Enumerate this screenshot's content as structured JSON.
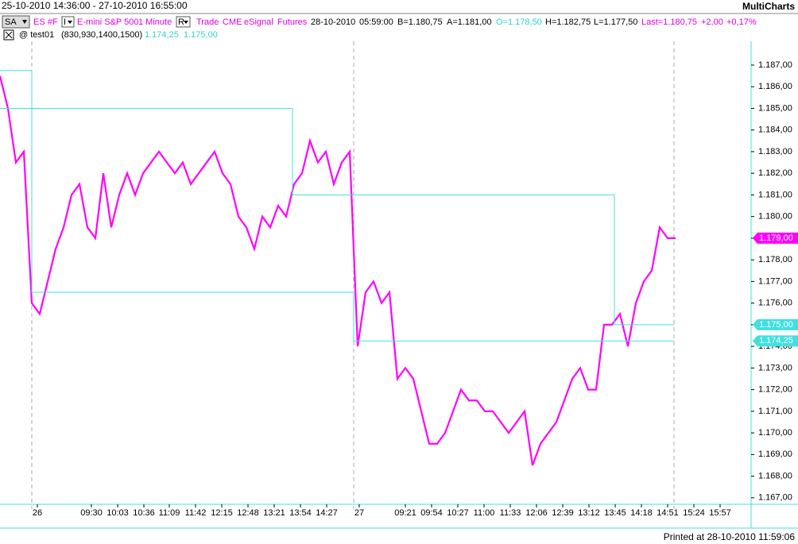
{
  "header": {
    "range": "25-10-2010 14:36:00 - 27-10-2010 16:55:00",
    "app": "MultiCharts",
    "buttons": [
      "SA",
      "I",
      "R"
    ],
    "symbol_bar": [
      "ES #F",
      "E-mini S&P 500",
      "1 Minute",
      "Trade",
      "CME",
      "eSignal",
      "Futures",
      "28-10-2010",
      "05:59:00",
      "B=1.180,75",
      "A=1.181,00",
      "O=1.178,50",
      "H=1.182,75",
      "L=1.177,50",
      "Last=1.180,75",
      "+2,00",
      "+0,17%"
    ],
    "study": {
      "name": "@ test01",
      "params": "(830,930,1400,1500)",
      "values": [
        "1.174,25",
        "1.175,00"
      ]
    }
  },
  "footer": "Printed at 28-10-2010 11:59:06",
  "chart_data": {
    "type": "line",
    "xlim": [
      0,
      94.5
    ],
    "ylim": [
      1166.7,
      1188.1
    ],
    "yticks": [
      {
        "value": 1167,
        "label": "1.167,00"
      },
      {
        "value": 1168,
        "label": "1.168,00"
      },
      {
        "value": 1169,
        "label": "1.169,00"
      },
      {
        "value": 1170,
        "label": "1.170,00"
      },
      {
        "value": 1171,
        "label": "1.171,00"
      },
      {
        "value": 1172,
        "label": "1.172,00"
      },
      {
        "value": 1173,
        "label": "1.173,00"
      },
      {
        "value": 1174,
        "label": "1.174,00"
      },
      {
        "value": 1175,
        "label": "1.175,00"
      },
      {
        "value": 1176,
        "label": "1.176,00"
      },
      {
        "value": 1177,
        "label": "1.177,00"
      },
      {
        "value": 1178,
        "label": "1.178,00"
      },
      {
        "value": 1179,
        "label": "1.179,00"
      },
      {
        "value": 1180,
        "label": "1.180,00"
      },
      {
        "value": 1181,
        "label": "1.181,00"
      },
      {
        "value": 1182,
        "label": "1.182,00"
      },
      {
        "value": 1183,
        "label": "1.183,00"
      },
      {
        "value": 1184,
        "label": "1.184,00"
      },
      {
        "value": 1185,
        "label": "1.185,00"
      },
      {
        "value": 1186,
        "label": "1.186,00"
      },
      {
        "value": 1187,
        "label": "1.187,00"
      }
    ],
    "xticks": [
      {
        "value": 4.7,
        "label": "26"
      },
      {
        "value": 11.5,
        "label": "09:30"
      },
      {
        "value": 14.8,
        "label": "10:03"
      },
      {
        "value": 18.1,
        "label": "10:36"
      },
      {
        "value": 21.3,
        "label": "11:09"
      },
      {
        "value": 24.6,
        "label": "11:42"
      },
      {
        "value": 27.9,
        "label": "12:15"
      },
      {
        "value": 31.2,
        "label": "12:48"
      },
      {
        "value": 34.5,
        "label": "13:21"
      },
      {
        "value": 37.8,
        "label": "13:54"
      },
      {
        "value": 41.1,
        "label": "14:27"
      },
      {
        "value": 45.2,
        "label": "27"
      },
      {
        "value": 51,
        "label": "09:21"
      },
      {
        "value": 54.3,
        "label": "09:54"
      },
      {
        "value": 57.6,
        "label": "10:27"
      },
      {
        "value": 60.9,
        "label": "11:00"
      },
      {
        "value": 64.2,
        "label": "11:33"
      },
      {
        "value": 67.5,
        "label": "12:06"
      },
      {
        "value": 70.8,
        "label": "12:39"
      },
      {
        "value": 74.1,
        "label": "13:12"
      },
      {
        "value": 77.4,
        "label": "13:45"
      },
      {
        "value": 80.7,
        "label": "14:18"
      },
      {
        "value": 84,
        "label": "14:51"
      },
      {
        "value": 87.3,
        "label": "15:24"
      },
      {
        "value": 90.6,
        "label": "15:57"
      }
    ],
    "day_separators": [
      4,
      44.5,
      84.8
    ],
    "series": [
      {
        "name": "ES #F",
        "color": "#ff00ff",
        "x": [
          0,
          1,
          2,
          3,
          4,
          5,
          6,
          7,
          8,
          9,
          10,
          11,
          12,
          13,
          14,
          15,
          16,
          17,
          18,
          19,
          20,
          21,
          22,
          23,
          24,
          25,
          26,
          27,
          28,
          29,
          30,
          31,
          32,
          33,
          34,
          35,
          36,
          37,
          38,
          39,
          40,
          41,
          42,
          43,
          44,
          45,
          46,
          47,
          48,
          49,
          50,
          51,
          52,
          53,
          54,
          55,
          56,
          57,
          58,
          59,
          60,
          61,
          62,
          63,
          64,
          65,
          66,
          67,
          68,
          69,
          70,
          71,
          72,
          73,
          74,
          75,
          76,
          77,
          78,
          79,
          80,
          81,
          82,
          83,
          84,
          85
        ],
        "values": [
          1186.5,
          1185,
          1182.5,
          1183,
          1176,
          1175.5,
          1177,
          1178.5,
          1179.5,
          1181,
          1181.5,
          1179.5,
          1179,
          1182,
          1179.5,
          1181,
          1182,
          1181,
          1182,
          1182.5,
          1183,
          1182.5,
          1182,
          1182.5,
          1181.5,
          1182,
          1182.5,
          1183,
          1182,
          1181.5,
          1180,
          1179.5,
          1178.5,
          1180,
          1179.5,
          1180.5,
          1180,
          1181.5,
          1182,
          1183.5,
          1182.5,
          1183,
          1181.5,
          1182.5,
          1183,
          1174,
          1176.5,
          1177,
          1176,
          1176.5,
          1172.5,
          1173,
          1172.5,
          1171,
          1169.5,
          1169.5,
          1170,
          1171,
          1172,
          1171.5,
          1171.5,
          1171,
          1171,
          1170.5,
          1170,
          1170.5,
          1171,
          1168.5,
          1169.5,
          1170,
          1170.5,
          1171.5,
          1172.5,
          1173,
          1172,
          1172,
          1175,
          1175,
          1175.5,
          1174,
          1176,
          1177,
          1177.5,
          1179.5,
          1179,
          1179
        ]
      },
      {
        "name": "test01 low",
        "color": "#40e0e0",
        "x": [
          0,
          4,
          4,
          44.5,
          44.5,
          84.8
        ],
        "values": [
          1186.75,
          1186.75,
          1176.5,
          1176.5,
          1174.25,
          1174.25
        ]
      },
      {
        "name": "test01 high",
        "color": "#40e0e0",
        "x": [
          0,
          36.8,
          36.8,
          77.3,
          77.3,
          84.8
        ],
        "values": [
          1185,
          1185,
          1181,
          1181,
          1175,
          1175
        ]
      }
    ],
    "price_markers": [
      {
        "value": 1179,
        "label": "1.179,00",
        "color": "#ff00ff"
      },
      {
        "value": 1175,
        "label": "1.175,00",
        "color": "#40e0e0"
      },
      {
        "value": 1174.25,
        "label": "1.174,25",
        "color": "#40e0e0"
      }
    ]
  }
}
